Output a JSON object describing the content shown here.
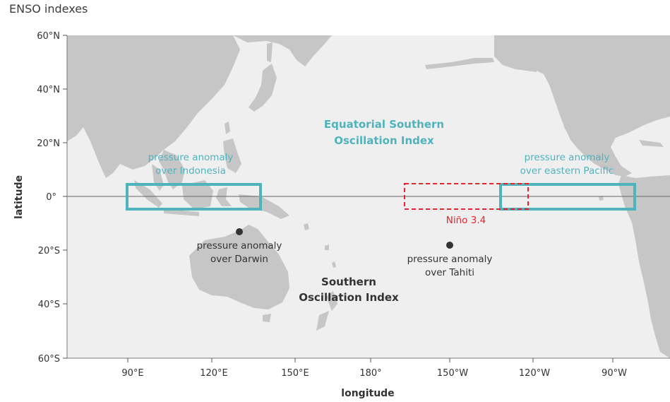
{
  "title": "ENSO indexes",
  "axes": {
    "xlabel": "longitude",
    "ylabel": "latitude",
    "lat_ticks": [
      "60°N",
      "40°N",
      "20°N",
      "0°",
      "20°S",
      "40°S",
      "60°S"
    ],
    "lon_ticks": [
      "90°E",
      "120°E",
      "150°E",
      "180°",
      "150°W",
      "120°W",
      "90°W"
    ]
  },
  "labels": {
    "equatorial_index": [
      "Equatorial Southern",
      "Oscillation Index"
    ],
    "southern_index": [
      "Southern",
      "Oscillation Index"
    ],
    "indonesia": [
      "pressure anomaly",
      "over Indonesia"
    ],
    "east_pacific": [
      "pressure anomaly",
      "over eastern Pacific"
    ],
    "darwin": [
      "pressure anomaly",
      "over Darwin"
    ],
    "tahiti": [
      "pressure anomaly",
      "over Tahiti"
    ],
    "nino34": "Niño 3.4"
  },
  "colors": {
    "ocean": "#efefef",
    "land": "#c6c6c6",
    "teal": "#4fb3be",
    "red": "#e8232a",
    "dark": "#333333"
  }
}
